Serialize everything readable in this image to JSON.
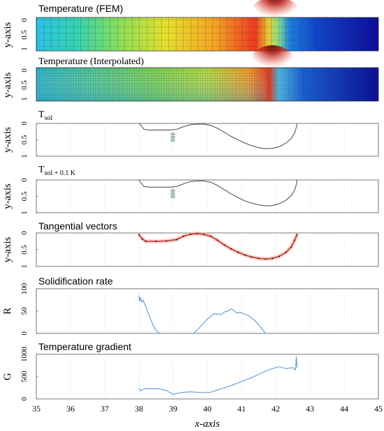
{
  "chart_data": [
    {
      "type": "heatmap",
      "title": "Temperature (FEM)",
      "ylabel": "y-axis",
      "y_ticks": [
        "0",
        "0.5",
        "1"
      ],
      "xlim": [
        35,
        45
      ],
      "ylim": [
        0,
        1
      ],
      "colormap": "jet",
      "hot_spot": {
        "x": 42.0,
        "y": 0.0
      },
      "melt_front_x": [
        38.0,
        42.6
      ]
    },
    {
      "type": "heatmap",
      "title": "Temperature (Interpolated)",
      "ylabel": "y-axis",
      "y_ticks": [
        "0",
        "0.5",
        "1"
      ],
      "xlim": [
        35,
        45
      ],
      "ylim": [
        0,
        1
      ],
      "colormap": "jet",
      "hot_spot": {
        "x": 42.0,
        "y": 0.0
      }
    },
    {
      "type": "line",
      "title": "T",
      "title_sub": "sol",
      "ylabel": "y-axis",
      "y_ticks": [
        "0",
        "0.5",
        "1"
      ],
      "xlim": [
        35,
        45
      ],
      "ylim": [
        1,
        0
      ],
      "annotation": "888",
      "series": [
        {
          "color": "#555555",
          "x": [
            38.0,
            38.05,
            38.15,
            38.3,
            38.6,
            38.9,
            39.1,
            39.3,
            39.5,
            39.7,
            39.9,
            40.1,
            40.3,
            40.5,
            40.7,
            40.9,
            41.1,
            41.3,
            41.5,
            41.7,
            41.9,
            42.1,
            42.3,
            42.45,
            42.55,
            42.6,
            42.62
          ],
          "y": [
            0.0,
            0.05,
            0.18,
            0.2,
            0.2,
            0.2,
            0.18,
            0.1,
            0.04,
            0.02,
            0.02,
            0.06,
            0.15,
            0.27,
            0.4,
            0.5,
            0.6,
            0.68,
            0.74,
            0.77,
            0.76,
            0.71,
            0.6,
            0.46,
            0.3,
            0.12,
            0.0
          ]
        }
      ]
    },
    {
      "type": "line",
      "title": "T",
      "title_sub": "sol + 0.1 K",
      "ylabel": "y-axis",
      "y_ticks": [
        "0",
        "0.5",
        "1"
      ],
      "xlim": [
        35,
        45
      ],
      "ylim": [
        1,
        0
      ],
      "annotation": "888",
      "series": [
        {
          "color": "#555555",
          "x": [
            38.0,
            38.05,
            38.15,
            38.3,
            38.6,
            38.9,
            39.1,
            39.3,
            39.5,
            39.7,
            39.9,
            40.1,
            40.3,
            40.5,
            40.7,
            40.9,
            41.1,
            41.3,
            41.5,
            41.7,
            41.9,
            42.1,
            42.3,
            42.45,
            42.55,
            42.6,
            42.62
          ],
          "y": [
            0.0,
            0.08,
            0.2,
            0.22,
            0.22,
            0.22,
            0.2,
            0.12,
            0.05,
            0.03,
            0.03,
            0.07,
            0.17,
            0.3,
            0.43,
            0.54,
            0.64,
            0.71,
            0.76,
            0.79,
            0.78,
            0.73,
            0.62,
            0.48,
            0.32,
            0.14,
            0.0
          ]
        }
      ]
    },
    {
      "type": "line",
      "title": "Tangential vectors",
      "ylabel": "y-axis",
      "y_ticks": [
        "0",
        "0.5",
        "1"
      ],
      "xlim": [
        35,
        45
      ],
      "ylim": [
        1,
        0
      ],
      "series": [
        {
          "color": "#c0392b",
          "x": [
            38.0,
            38.1,
            38.2,
            38.5,
            38.8,
            39.1,
            39.3,
            39.5,
            39.7,
            39.9,
            40.1,
            40.3,
            40.5,
            40.7,
            40.9,
            41.1,
            41.3,
            41.5,
            41.7,
            41.9,
            42.1,
            42.3,
            42.45,
            42.55,
            42.62
          ],
          "y": [
            0.05,
            0.18,
            0.25,
            0.25,
            0.24,
            0.2,
            0.1,
            0.04,
            0.02,
            0.04,
            0.1,
            0.22,
            0.36,
            0.48,
            0.58,
            0.66,
            0.72,
            0.76,
            0.78,
            0.76,
            0.7,
            0.58,
            0.42,
            0.22,
            0.05
          ]
        }
      ]
    },
    {
      "type": "line",
      "title": "Solidification rate",
      "ylabel": "R",
      "y_ticks": [
        "0",
        "50",
        "100"
      ],
      "xlim": [
        35,
        45
      ],
      "ylim": [
        0,
        100
      ],
      "series": [
        {
          "color": "#5b9bd5",
          "x": [
            38.0,
            38.02,
            38.05,
            38.08,
            38.12,
            38.2,
            38.3,
            38.4,
            38.5,
            38.6,
            38.7,
            null,
            39.6,
            39.8,
            40.0,
            40.2,
            40.4,
            40.5,
            40.6,
            40.7,
            40.8,
            40.85,
            40.9,
            41.0,
            41.2,
            41.4,
            41.6,
            41.7
          ],
          "y": [
            85,
            72,
            80,
            70,
            74,
            60,
            40,
            20,
            6,
            1,
            0,
            null,
            0,
            15,
            32,
            44,
            42,
            48,
            50,
            55,
            50,
            45,
            47,
            46,
            40,
            28,
            10,
            0
          ]
        }
      ]
    },
    {
      "type": "line",
      "title": "Temperature gradient",
      "ylabel": "G",
      "xlabel": "x-axis",
      "y_ticks": [
        "0",
        "500",
        "1000"
      ],
      "x_ticks": [
        "35",
        "36",
        "37",
        "38",
        "39",
        "40",
        "41",
        "42",
        "43",
        "44",
        "45"
      ],
      "xlim": [
        35,
        45
      ],
      "ylim": [
        0,
        1000
      ],
      "series": [
        {
          "color": "#5b9bd5",
          "x": [
            38.0,
            38.05,
            38.1,
            38.2,
            38.4,
            38.6,
            38.8,
            39.0,
            39.1,
            39.3,
            39.5,
            39.7,
            39.9,
            40.1,
            40.3,
            40.5,
            40.7,
            40.9,
            41.1,
            41.3,
            41.5,
            41.7,
            41.9,
            42.1,
            42.3,
            42.5,
            42.58,
            42.6,
            42.62
          ],
          "y": [
            250,
            180,
            210,
            230,
            230,
            225,
            190,
            100,
            120,
            150,
            160,
            150,
            140,
            150,
            200,
            250,
            300,
            360,
            420,
            480,
            550,
            620,
            680,
            720,
            680,
            700,
            650,
            940,
            700
          ]
        }
      ]
    }
  ]
}
